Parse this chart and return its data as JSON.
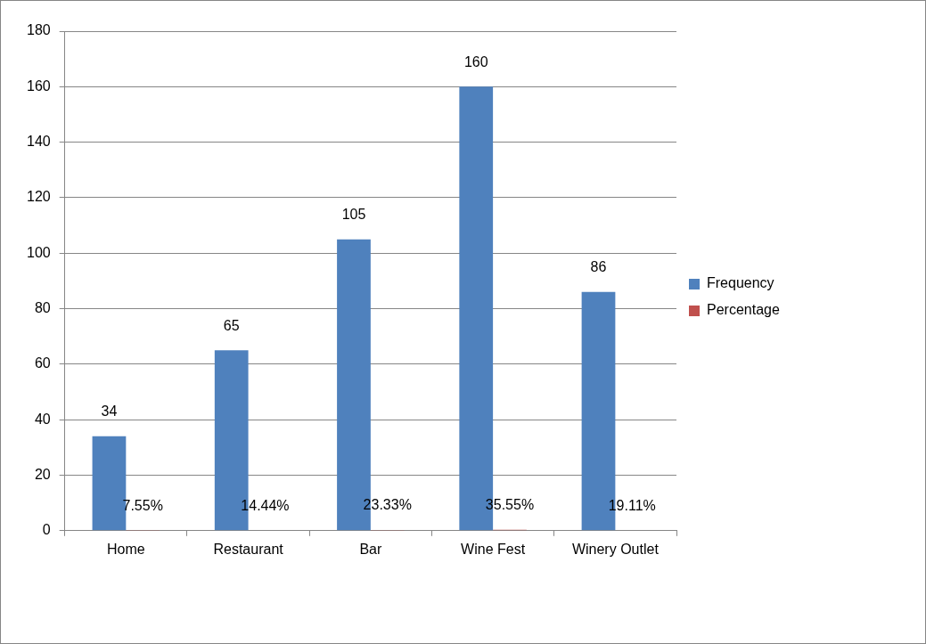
{
  "chart_data": {
    "type": "bar",
    "categories": [
      "Home",
      "Restaurant",
      "Bar",
      "Wine Fest",
      "Winery Outlet"
    ],
    "series": [
      {
        "name": "Frequency",
        "color": "#4f81bd",
        "values": [
          34,
          65,
          105,
          160,
          86
        ],
        "value_labels": [
          "34",
          "65",
          "105",
          "160",
          "86"
        ]
      },
      {
        "name": "Percentage",
        "color": "#c0504d",
        "values": [
          0.0755,
          0.1444,
          0.2333,
          0.3555,
          0.1911
        ],
        "value_labels": [
          "7.55%",
          "14.44%",
          "23.33%",
          "35.55%",
          "19.11%"
        ]
      }
    ],
    "ylim": [
      0,
      180
    ],
    "yticks": [
      0,
      20,
      40,
      60,
      80,
      100,
      120,
      140,
      160,
      180
    ],
    "grid": "y",
    "legend": "right"
  }
}
